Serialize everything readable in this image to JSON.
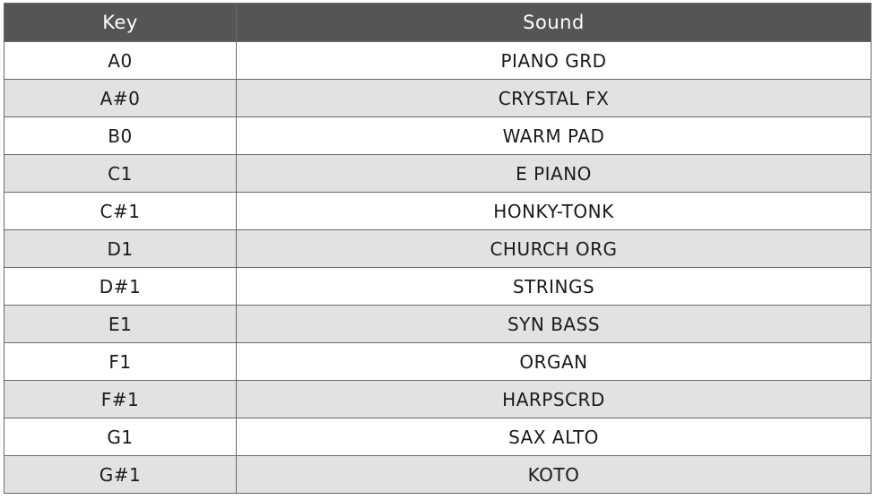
{
  "headers": {
    "key": "Key",
    "sound": "Sound"
  },
  "rows": [
    {
      "key": "A0",
      "sound": "PIANO GRD"
    },
    {
      "key": "A#0",
      "sound": "CRYSTAL FX"
    },
    {
      "key": "B0",
      "sound": "WARM PAD"
    },
    {
      "key": "C1",
      "sound": "E PIANO"
    },
    {
      "key": "C#1",
      "sound": "HONKY-TONK"
    },
    {
      "key": "D1",
      "sound": "CHURCH ORG"
    },
    {
      "key": "D#1",
      "sound": "STRINGS"
    },
    {
      "key": "E1",
      "sound": "SYN BASS"
    },
    {
      "key": "F1",
      "sound": "ORGAN"
    },
    {
      "key": "F#1",
      "sound": "HARPSCRD"
    },
    {
      "key": "G1",
      "sound": "SAX ALTO"
    },
    {
      "key": "G#1",
      "sound": "KOTO"
    }
  ],
  "colors": {
    "header_bg": "#555555",
    "alt_row_bg": "#e2e2e2"
  }
}
